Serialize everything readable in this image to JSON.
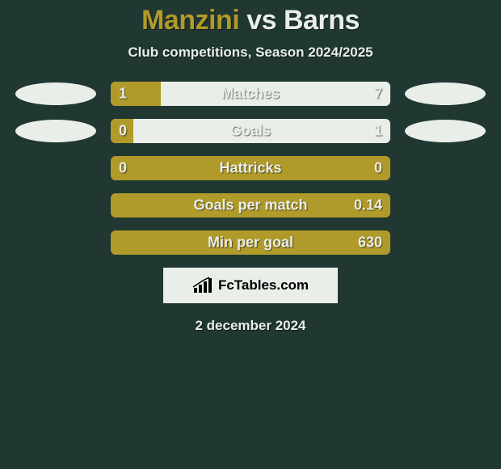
{
  "title": {
    "player1": "Manzini",
    "vs": " vs ",
    "player2": "Barns"
  },
  "subtitle": "Club competitions, Season 2024/2025",
  "colors": {
    "background": "#203732",
    "accent": "#b09a2a",
    "light": "#e9eee8"
  },
  "rows": [
    {
      "label": "Matches",
      "left": "1",
      "right": "7",
      "fill_pct": 18,
      "show_ellipses": true
    },
    {
      "label": "Goals",
      "left": "0",
      "right": "1",
      "fill_pct": 8,
      "show_ellipses": true
    },
    {
      "label": "Hattricks",
      "left": "0",
      "right": "0",
      "fill_pct": 100,
      "show_ellipses": false
    },
    {
      "label": "Goals per match",
      "left": "",
      "right": "0.14",
      "fill_pct": 100,
      "show_ellipses": false
    },
    {
      "label": "Min per goal",
      "left": "",
      "right": "630",
      "fill_pct": 100,
      "show_ellipses": false
    }
  ],
  "logo": "FcTables.com",
  "date": "2 december 2024"
}
